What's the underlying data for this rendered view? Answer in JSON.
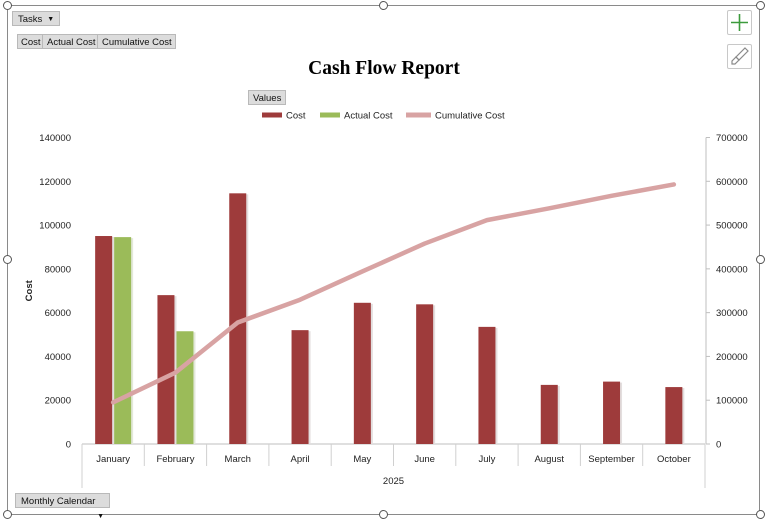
{
  "pivot": {
    "filter_label": "Tasks",
    "value_fields": [
      "Cost",
      "Actual Cost",
      "Cumulative Cost"
    ],
    "values_label": "Values",
    "axis_field_label": "Monthly Calendar"
  },
  "colors": {
    "cost": "#9e3b3b",
    "actual": "#9bbb59",
    "cumulative": "#d8a3a3",
    "plus": "#3c9b3c"
  },
  "chart_data": {
    "type": "bar",
    "title": "Cash Flow Report",
    "categories": [
      "January",
      "February",
      "March",
      "April",
      "May",
      "June",
      "July",
      "August",
      "September",
      "October"
    ],
    "xlabel": "2025",
    "ylabel": "Cost",
    "ylim": [
      0,
      140000
    ],
    "yticks": [
      "0",
      "20000",
      "40000",
      "60000",
      "80000",
      "100000",
      "120000",
      "140000"
    ],
    "y2lim": [
      0,
      700000
    ],
    "y2ticks": [
      "0",
      "100000",
      "200000",
      "300000",
      "400000",
      "500000",
      "600000",
      "700000"
    ],
    "legend": "top-center",
    "series": [
      {
        "name": "Cost",
        "kind": "bar",
        "axis": "left",
        "values": [
          95000,
          68000,
          114500,
          52000,
          64500,
          63800,
          53500,
          27000,
          28500,
          26000
        ]
      },
      {
        "name": "Actual Cost",
        "kind": "bar",
        "axis": "left",
        "values": [
          94500,
          51500,
          null,
          null,
          null,
          null,
          null,
          null,
          null,
          null
        ]
      },
      {
        "name": "Cumulative Cost",
        "kind": "line",
        "axis": "right",
        "values": [
          95000,
          163000,
          277500,
          329500,
          394000,
          457800,
          511300,
          538300,
          566800,
          592800
        ]
      }
    ]
  }
}
